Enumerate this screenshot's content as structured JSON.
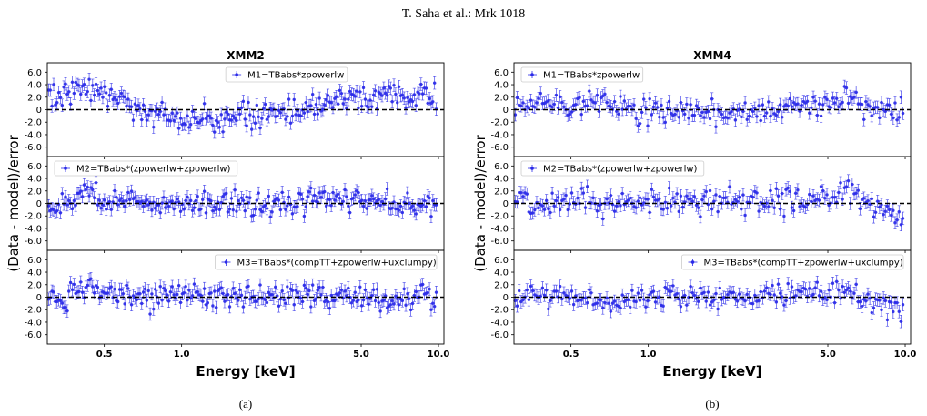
{
  "header": {
    "running_head": "T. Saha et al.: Mrk 1018"
  },
  "colors": {
    "data": "#2a2ae8",
    "zero_line": "#000000"
  },
  "chart_data": [
    {
      "type": "scatter",
      "title": "XMM2",
      "caption": "(a)",
      "xlabel": "Energy [keV]",
      "ylabel": "(Data - model)/error",
      "xscale": "log",
      "xlim": [
        0.3,
        10.5
      ],
      "x_ticks": [
        0.5,
        1.0,
        5.0,
        10.0
      ],
      "x_tick_labels": [
        "0.5",
        "1.0",
        "5.0",
        "10.0"
      ],
      "ylim": [
        -7.5,
        7.5
      ],
      "y_ticks": [
        6,
        4,
        2,
        0,
        -2,
        -4,
        -6
      ],
      "y_tick_labels": [
        "6.0",
        "4.0",
        "2.0",
        "0",
        "-2.0",
        "-4.0",
        "-6.0"
      ],
      "panels": [
        {
          "legend": "M1=TBabs*zpowerlw",
          "legend_position": "top-center",
          "n_points": 230,
          "trend": [
            [
              0.3,
              2.5
            ],
            [
              0.35,
              2.4
            ],
            [
              0.4,
              4.2
            ],
            [
              0.45,
              2.8
            ],
            [
              0.55,
              2.2
            ],
            [
              0.65,
              0.2
            ],
            [
              0.8,
              -0.5
            ],
            [
              1.0,
              -1.8
            ],
            [
              1.3,
              -1.5
            ],
            [
              1.8,
              -1.0
            ],
            [
              2.5,
              -0.5
            ],
            [
              3.5,
              0.8
            ],
            [
              5.0,
              1.8
            ],
            [
              6.5,
              2.5
            ],
            [
              8.0,
              2.3
            ],
            [
              10.0,
              2.0
            ]
          ]
        },
        {
          "legend": "M2=TBabs*(zpowerlw+zpowerlw)",
          "legend_position": "top-left",
          "n_points": 230,
          "trend": [
            [
              0.3,
              -0.5
            ],
            [
              0.38,
              0.2
            ],
            [
              0.42,
              2.0
            ],
            [
              0.5,
              0.8
            ],
            [
              0.7,
              0.4
            ],
            [
              1.0,
              0.0
            ],
            [
              1.5,
              0.2
            ],
            [
              2.5,
              0.2
            ],
            [
              4.0,
              0.6
            ],
            [
              5.5,
              0.8
            ],
            [
              7.0,
              -0.3
            ],
            [
              10.0,
              -0.5
            ]
          ]
        },
        {
          "legend": "M3=TBabs*(compTT+zpowerlw+uxclumpy)",
          "legend_position": "top-right",
          "n_points": 230,
          "trend": [
            [
              0.3,
              0.2
            ],
            [
              0.35,
              -0.4
            ],
            [
              0.42,
              2.0
            ],
            [
              0.5,
              0.5
            ],
            [
              0.7,
              -0.5
            ],
            [
              1.0,
              0.2
            ],
            [
              1.5,
              0.3
            ],
            [
              2.5,
              0.3
            ],
            [
              4.0,
              0.2
            ],
            [
              6.0,
              -0.5
            ],
            [
              10.0,
              0.3
            ]
          ]
        }
      ]
    },
    {
      "type": "scatter",
      "title": "XMM4",
      "caption": "(b)",
      "xlabel": "Energy [keV]",
      "ylabel": "(Data - model)/error",
      "xscale": "log",
      "xlim": [
        0.3,
        10.5
      ],
      "x_ticks": [
        0.5,
        1.0,
        5.0,
        10.0
      ],
      "x_tick_labels": [
        "0.5",
        "1.0",
        "5.0",
        "10.0"
      ],
      "ylim": [
        -7.5,
        7.5
      ],
      "y_ticks": [
        6,
        4,
        2,
        0,
        -2,
        -4,
        -6
      ],
      "y_tick_labels": [
        "6.0",
        "4.0",
        "2.0",
        "0",
        "-2.0",
        "-4.0",
        "-6.0"
      ],
      "panels": [
        {
          "legend": "M1=TBabs*zpowerlw",
          "legend_position": "top-left",
          "n_points": 200,
          "trend": [
            [
              0.3,
              0.8
            ],
            [
              0.4,
              1.5
            ],
            [
              0.5,
              0.5
            ],
            [
              0.6,
              1.5
            ],
            [
              0.8,
              0.0
            ],
            [
              1.0,
              -0.3
            ],
            [
              1.5,
              -0.6
            ],
            [
              2.5,
              -0.8
            ],
            [
              3.5,
              0.3
            ],
            [
              5.0,
              1.2
            ],
            [
              6.0,
              2.5
            ],
            [
              7.0,
              0.5
            ],
            [
              9.5,
              -0.5
            ]
          ]
        },
        {
          "legend": "M2=TBabs*(zpowerlw+zpowerlw)",
          "legend_position": "top-left",
          "n_points": 200,
          "trend": [
            [
              0.3,
              0.6
            ],
            [
              0.4,
              0.2
            ],
            [
              0.5,
              0.6
            ],
            [
              0.7,
              0.0
            ],
            [
              1.0,
              0.3
            ],
            [
              1.5,
              0.2
            ],
            [
              2.5,
              0.4
            ],
            [
              3.5,
              0.4
            ],
            [
              5.0,
              0.8
            ],
            [
              6.0,
              2.0
            ],
            [
              7.0,
              0.0
            ],
            [
              8.5,
              -1.5
            ],
            [
              9.5,
              -2.5
            ]
          ]
        },
        {
          "legend": "M3=TBabs*(compTT+zpowerlw+uxclumpy)",
          "legend_position": "top-right",
          "n_points": 200,
          "trend": [
            [
              0.3,
              0.3
            ],
            [
              0.4,
              0.4
            ],
            [
              0.5,
              -0.2
            ],
            [
              0.7,
              -1.2
            ],
            [
              1.0,
              0.2
            ],
            [
              1.5,
              0.1
            ],
            [
              2.5,
              0.1
            ],
            [
              4.0,
              0.2
            ],
            [
              5.5,
              1.0
            ],
            [
              6.5,
              0.2
            ],
            [
              8.0,
              -0.8
            ],
            [
              9.5,
              -1.5
            ]
          ]
        }
      ]
    }
  ]
}
